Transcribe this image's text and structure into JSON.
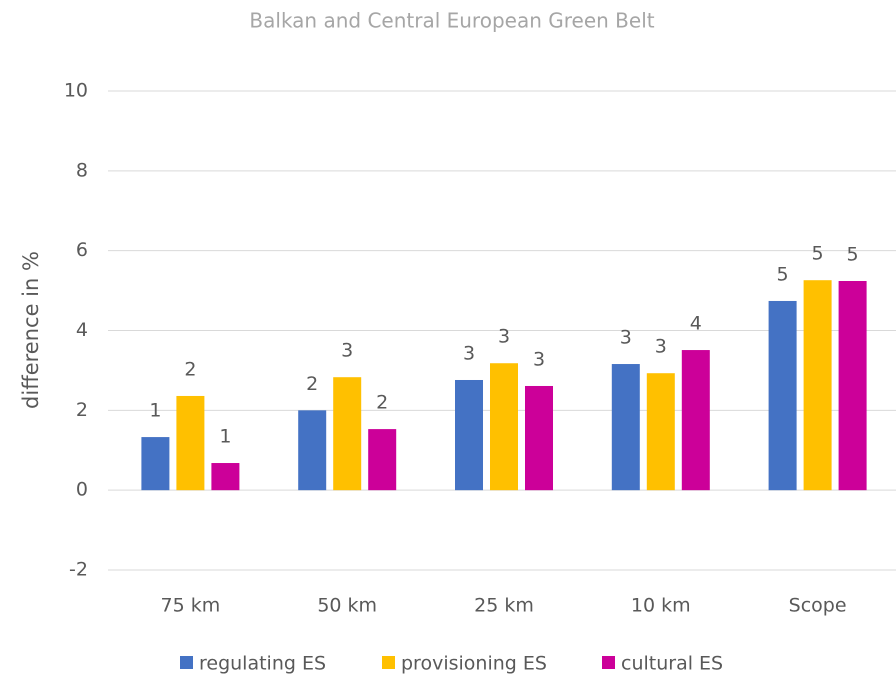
{
  "chart_data": {
    "type": "bar",
    "title": "Balkan and Central European Green Belt",
    "y_label": "difference in %",
    "categories": [
      "75 km",
      "50 km",
      "25 km",
      "10 km",
      "Scope"
    ],
    "series": [
      {
        "name": "regulating ES",
        "color": "#4472c4",
        "values": [
          1.33,
          2.0,
          2.76,
          3.16,
          4.74
        ],
        "value_labels": [
          "1",
          "2",
          "3",
          "3",
          "5"
        ]
      },
      {
        "name": "provisioning ES",
        "color": "#ffc000",
        "values": [
          2.36,
          2.83,
          3.18,
          2.93,
          5.26
        ],
        "value_labels": [
          "2",
          "3",
          "3",
          "3",
          "5"
        ]
      },
      {
        "name": "cultural ES",
        "color": "#cc0099",
        "values": [
          0.68,
          1.53,
          2.61,
          3.51,
          5.24
        ],
        "value_labels": [
          "1",
          "2",
          "3",
          "4",
          "5"
        ]
      }
    ],
    "ylim": [
      -2,
      10
    ],
    "yticks": [
      -2,
      0,
      2,
      4,
      6,
      8,
      10
    ],
    "grid": true,
    "legend": "bottom"
  }
}
